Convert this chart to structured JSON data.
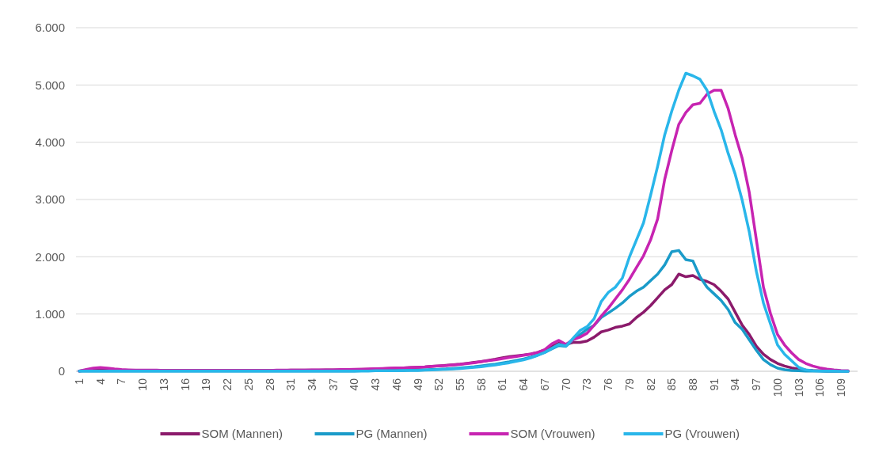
{
  "chart_data": {
    "type": "line",
    "categories": [
      "1",
      null,
      null,
      "4",
      null,
      null,
      "7",
      null,
      null,
      "10",
      null,
      null,
      "13",
      null,
      null,
      "16",
      null,
      null,
      "19",
      null,
      null,
      "22",
      null,
      null,
      "25",
      null,
      null,
      "28",
      null,
      null,
      "31",
      null,
      null,
      "34",
      null,
      null,
      "37",
      null,
      null,
      "40",
      null,
      null,
      "43",
      null,
      null,
      "46",
      null,
      null,
      "49",
      null,
      null,
      "52",
      null,
      null,
      "55",
      null,
      null,
      "58",
      null,
      null,
      "61",
      null,
      null,
      "64",
      null,
      null,
      "67",
      null,
      null,
      "70",
      null,
      null,
      "73",
      null,
      null,
      "76",
      null,
      null,
      "79",
      null,
      null,
      "82",
      null,
      null,
      "85",
      null,
      null,
      "88",
      null,
      null,
      "91",
      null,
      null,
      "94",
      null,
      null,
      "97",
      null,
      null,
      "100",
      null,
      null,
      "103",
      null,
      null,
      "106",
      null,
      null,
      "109",
      null
    ],
    "series": [
      {
        "name": "SOM (Mannen)",
        "color": "#8b1a6b",
        "values": [
          5,
          20,
          35,
          45,
          40,
          30,
          20,
          15,
          15,
          15,
          15,
          15,
          15,
          15,
          15,
          15,
          15,
          15,
          15,
          15,
          15,
          15,
          15,
          15,
          15,
          15,
          15,
          15,
          15,
          15,
          20,
          20,
          20,
          20,
          20,
          25,
          25,
          25,
          30,
          30,
          35,
          35,
          40,
          45,
          50,
          55,
          60,
          65,
          70,
          75,
          85,
          95,
          105,
          115,
          125,
          140,
          155,
          170,
          190,
          210,
          235,
          255,
          270,
          285,
          300,
          330,
          370,
          430,
          490,
          470,
          505,
          505,
          528,
          596,
          688,
          720,
          766,
          789,
          826,
          940,
          1032,
          1147,
          1284,
          1422,
          1514,
          1697,
          1651,
          1674,
          1605,
          1569,
          1514,
          1399,
          1261,
          1032,
          803,
          642,
          436,
          298,
          206,
          138,
          92,
          60,
          37,
          23,
          14,
          9,
          5,
          3,
          2,
          1
        ]
      },
      {
        "name": "PG (Mannen)",
        "color": "#1a9bc9",
        "values": [
          5,
          5,
          5,
          5,
          5,
          5,
          5,
          5,
          5,
          5,
          5,
          5,
          5,
          5,
          5,
          5,
          5,
          5,
          5,
          5,
          5,
          5,
          5,
          5,
          5,
          5,
          5,
          5,
          5,
          5,
          5,
          5,
          5,
          5,
          5,
          5,
          5,
          5,
          5,
          5,
          10,
          10,
          10,
          10,
          15,
          15,
          15,
          20,
          20,
          25,
          30,
          35,
          40,
          50,
          60,
          70,
          80,
          95,
          110,
          125,
          145,
          165,
          190,
          215,
          245,
          280,
          330,
          390,
          450,
          436,
          550,
          642,
          734,
          803,
          940,
          1018,
          1101,
          1193,
          1307,
          1399,
          1468,
          1583,
          1697,
          1858,
          2087,
          2110,
          1949,
          1927,
          1651,
          1468,
          1353,
          1238,
          1078,
          849,
          734,
          550,
          367,
          206,
          115,
          55,
          28,
          14,
          9,
          5,
          3,
          2,
          1,
          0,
          0,
          0
        ]
      },
      {
        "name": "SOM (Vrouwen)",
        "color": "#c724b1",
        "values": [
          5,
          30,
          55,
          65,
          55,
          40,
          30,
          25,
          20,
          20,
          20,
          20,
          15,
          15,
          15,
          15,
          15,
          15,
          15,
          15,
          15,
          15,
          15,
          15,
          15,
          15,
          15,
          15,
          20,
          20,
          20,
          20,
          20,
          25,
          25,
          25,
          25,
          30,
          30,
          35,
          35,
          40,
          45,
          50,
          55,
          60,
          60,
          65,
          70,
          75,
          85,
          95,
          100,
          110,
          120,
          135,
          150,
          170,
          185,
          200,
          220,
          240,
          260,
          280,
          300,
          330,
          380,
          480,
          540,
          470,
          550,
          596,
          665,
          803,
          963,
          1101,
          1261,
          1422,
          1605,
          1812,
          2018,
          2294,
          2660,
          3349,
          3853,
          4312,
          4518,
          4656,
          4679,
          4839,
          4908,
          4908,
          4587,
          4128,
          3715,
          3119,
          2294,
          1468,
          1009,
          642,
          459,
          321,
          206,
          138,
          92,
          60,
          37,
          23,
          14,
          9
        ]
      },
      {
        "name": "PG (Vrouwen)",
        "color": "#29b6ea",
        "values": [
          5,
          5,
          5,
          5,
          5,
          5,
          5,
          5,
          5,
          5,
          5,
          5,
          5,
          5,
          5,
          5,
          5,
          5,
          5,
          5,
          5,
          5,
          5,
          5,
          5,
          5,
          5,
          5,
          5,
          5,
          5,
          5,
          5,
          5,
          5,
          5,
          5,
          5,
          5,
          5,
          5,
          5,
          10,
          10,
          10,
          10,
          15,
          15,
          15,
          20,
          25,
          30,
          35,
          40,
          50,
          60,
          70,
          80,
          95,
          110,
          130,
          150,
          175,
          200,
          235,
          280,
          330,
          400,
          470,
          440,
          573,
          711,
          780,
          917,
          1216,
          1376,
          1468,
          1628,
          1995,
          2294,
          2592,
          3073,
          3578,
          4128,
          4541,
          4908,
          5206,
          5160,
          5100,
          4908,
          4541,
          4220,
          3807,
          3440,
          2982,
          2431,
          1743,
          1193,
          826,
          459,
          298,
          183,
          69,
          23,
          10,
          5,
          3,
          2,
          1,
          0
        ]
      }
    ],
    "ylim": [
      0,
      6000
    ],
    "yticks": [
      {
        "value": 0,
        "label": "0"
      },
      {
        "value": 1000,
        "label": "1.000"
      },
      {
        "value": 2000,
        "label": "2.000"
      },
      {
        "value": 3000,
        "label": "3.000"
      },
      {
        "value": 4000,
        "label": "4.000"
      },
      {
        "value": 5000,
        "label": "5.000"
      },
      {
        "value": 6000,
        "label": "6.000"
      }
    ],
    "grid": "y",
    "legend": "bottom",
    "marker": "none",
    "line_style": "solid"
  }
}
